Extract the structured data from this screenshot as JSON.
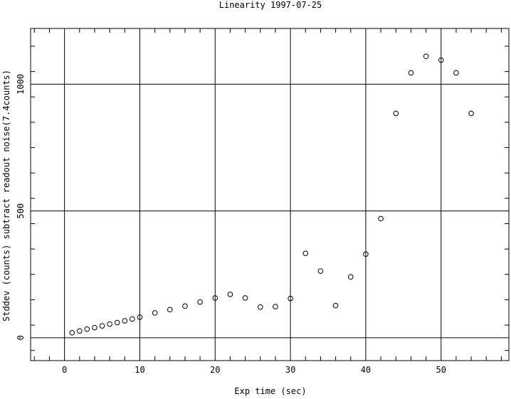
{
  "chart_data": {
    "type": "scatter",
    "title": "Linearity 1997-07-25",
    "xlabel": "Exp time (sec)",
    "ylabel": "Stddev (counts) subtract readout noise(7.4counts)",
    "xlim": [
      -4.5,
      59
    ],
    "ylim": [
      -90,
      1220
    ],
    "xticks": [
      0,
      10,
      20,
      30,
      40,
      50
    ],
    "xtick_labels": [
      "0",
      "10",
      "20",
      "30",
      "40",
      "50"
    ],
    "yticks": [
      0,
      500,
      1000
    ],
    "ytick_labels": [
      "0",
      "500",
      "1000"
    ],
    "grid": true,
    "legend": "none",
    "marker": "open-circle",
    "series": [
      {
        "x": [
          1,
          2,
          3,
          4,
          5,
          6,
          7,
          8,
          9,
          10,
          12,
          14,
          16,
          18,
          20,
          22,
          24,
          26,
          28,
          30,
          32,
          34,
          36,
          38,
          40,
          42,
          44,
          46,
          48,
          50,
          52,
          54
        ],
        "y": [
          20,
          27,
          34,
          40,
          47,
          54,
          60,
          67,
          74,
          81,
          98,
          111,
          125,
          141,
          157,
          171,
          157,
          121,
          123,
          155,
          333,
          263,
          127,
          240,
          330,
          470,
          885,
          1045,
          1110,
          1095,
          1045,
          885
        ]
      }
    ]
  }
}
